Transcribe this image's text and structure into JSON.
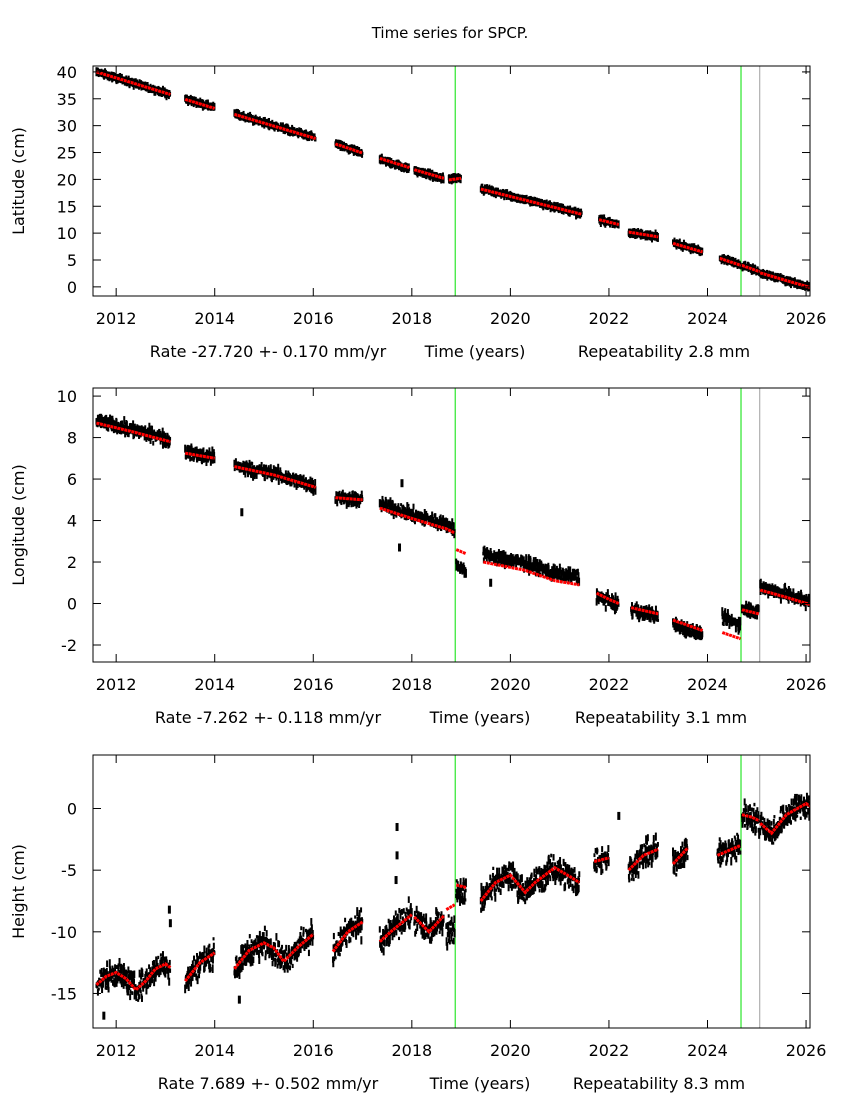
{
  "title": "Time series for SPCP.",
  "colors": {
    "observations": "#000000",
    "model": "#ff0000",
    "offset_line": "#00e000",
    "other_line": "#a0a0a0"
  },
  "chart_data": [
    {
      "type": "scatter",
      "ylabel": "Latitude (cm)",
      "xlabel": "Time (years)",
      "rate_label": "Rate -27.720 +- 0.170 mm/yr",
      "repeat_label": "Repeatability 2.8 mm",
      "xlim": [
        2011.53,
        2026.08
      ],
      "ylim": [
        -1.7,
        41.1
      ],
      "xticks": [
        2012,
        2014,
        2016,
        2018,
        2020,
        2022,
        2024,
        2026
      ],
      "yticks": [
        0,
        5,
        10,
        15,
        20,
        25,
        30,
        35,
        40
      ],
      "vlines": [
        {
          "x": 2018.88,
          "kind": "offset"
        },
        {
          "x": 2024.68,
          "kind": "offset"
        },
        {
          "x": 2025.06,
          "kind": "other"
        }
      ],
      "scatter_cm": 0.35,
      "segments": [
        {
          "model": [
            [
              2011.6,
              40.0
            ],
            [
              2013.1,
              35.8
            ]
          ],
          "obs_offset": 0.0
        },
        {
          "model": [
            [
              2013.4,
              34.9
            ],
            [
              2014.0,
              33.2
            ]
          ],
          "obs_offset": 0.1
        },
        {
          "model": [
            [
              2014.4,
              32.1
            ],
            [
              2016.05,
              27.6
            ]
          ],
          "obs_offset": 0.1
        },
        {
          "model": [
            [
              2016.45,
              26.6
            ],
            [
              2017.0,
              24.9
            ]
          ],
          "obs_offset": 0.0
        },
        {
          "model": [
            [
              2017.35,
              23.9
            ],
            [
              2017.95,
              22.2
            ]
          ],
          "obs_offset": -0.2
        },
        {
          "model": [
            [
              2018.05,
              21.8
            ],
            [
              2018.65,
              20.2
            ]
          ],
          "obs_offset": -0.1
        },
        {
          "model": [
            [
              2018.75,
              19.9
            ],
            [
              2019.0,
              20.2
            ]
          ],
          "obs_offset": 0.2
        },
        {
          "model": [
            [
              2019.4,
              18.2
            ],
            [
              2021.45,
              13.5
            ]
          ],
          "obs_offset": 0.1
        },
        {
          "model": [
            [
              2021.8,
              12.5
            ],
            [
              2022.2,
              11.6
            ]
          ],
          "obs_offset": 0.0
        },
        {
          "model": [
            [
              2022.4,
              10.2
            ],
            [
              2023.0,
              9.3
            ]
          ],
          "obs_offset": 0.0
        },
        {
          "model": [
            [
              2023.3,
              8.1
            ],
            [
              2023.9,
              6.5
            ]
          ],
          "obs_offset": 0.1
        },
        {
          "model": [
            [
              2024.25,
              5.3
            ],
            [
              2024.68,
              4.0
            ]
          ],
          "obs_offset": 0.1
        },
        {
          "model": [
            [
              2024.7,
              4.0
            ],
            [
              2025.06,
              2.8
            ]
          ],
          "obs_offset": 0.0
        },
        {
          "model": [
            [
              2025.07,
              2.6
            ],
            [
              2026.15,
              -0.3
            ]
          ],
          "obs_offset": 0.0
        }
      ],
      "outliers": []
    },
    {
      "type": "scatter",
      "ylabel": "Longitude (cm)",
      "xlabel": "Time (years)",
      "rate_label": "Rate -7.262 +- 0.118 mm/yr",
      "repeat_label": "Repeatability 3.1 mm",
      "xlim": [
        2011.53,
        2026.08
      ],
      "ylim": [
        -2.82,
        10.39
      ],
      "xticks": [
        2012,
        2014,
        2016,
        2018,
        2020,
        2022,
        2024,
        2026
      ],
      "yticks": [
        -2,
        0,
        2,
        4,
        6,
        8,
        10
      ],
      "vlines": [
        {
          "x": 2018.88,
          "kind": "offset"
        },
        {
          "x": 2024.68,
          "kind": "offset"
        },
        {
          "x": 2025.06,
          "kind": "other"
        }
      ],
      "scatter_cm": 0.25,
      "segments": [
        {
          "model": [
            [
              2011.6,
              8.7
            ],
            [
              2012.3,
              8.3
            ],
            [
              2013.1,
              7.8
            ]
          ],
          "obs_offset": 0.1
        },
        {
          "model": [
            [
              2013.4,
              7.25
            ],
            [
              2014.0,
              7.0
            ]
          ],
          "obs_offset": 0.05
        },
        {
          "model": [
            [
              2014.4,
              6.6
            ],
            [
              2015.2,
              6.2
            ],
            [
              2016.05,
              5.6
            ]
          ],
          "obs_offset": 0.05
        },
        {
          "model": [
            [
              2016.45,
              5.1
            ],
            [
              2017.0,
              5.0
            ]
          ],
          "obs_offset": 0.0
        },
        {
          "model": [
            [
              2017.35,
              4.6
            ],
            [
              2018.0,
              4.1
            ],
            [
              2018.7,
              3.6
            ],
            [
              2018.87,
              3.4
            ]
          ],
          "obs_offset": 0.2
        },
        {
          "model": [
            [
              2018.9,
              2.6
            ],
            [
              2019.1,
              2.4
            ]
          ],
          "obs_offset": -0.8
        },
        {
          "model": [
            [
              2019.45,
              2.0
            ],
            [
              2020.3,
              1.6
            ],
            [
              2020.9,
              1.1
            ],
            [
              2021.4,
              0.9
            ]
          ],
          "obs_offset": 0.35
        },
        {
          "model": [
            [
              2021.75,
              0.5
            ],
            [
              2022.0,
              0.2
            ],
            [
              2022.2,
              0.0
            ]
          ],
          "obs_offset": -0.1
        },
        {
          "model": [
            [
              2022.45,
              -0.2
            ],
            [
              2023.0,
              -0.5
            ]
          ],
          "obs_offset": -0.1
        },
        {
          "model": [
            [
              2023.3,
              -0.8
            ],
            [
              2023.9,
              -1.3
            ]
          ],
          "obs_offset": -0.2
        },
        {
          "model": [
            [
              2024.3,
              -1.4
            ],
            [
              2024.67,
              -1.7
            ]
          ],
          "obs_offset": 0.7
        },
        {
          "model": [
            [
              2024.7,
              -0.3
            ],
            [
              2025.04,
              -0.5
            ]
          ],
          "obs_offset": 0.1
        },
        {
          "model": [
            [
              2025.07,
              0.65
            ],
            [
              2025.6,
              0.3
            ],
            [
              2026.15,
              -0.1
            ]
          ],
          "obs_offset": 0.15
        }
      ],
      "outliers": [
        [
          2014.55,
          4.4
        ],
        [
          2017.75,
          2.7
        ],
        [
          2017.8,
          5.8
        ],
        [
          2019.6,
          1.0
        ]
      ]
    },
    {
      "type": "scatter",
      "ylabel": "Height (cm)",
      "xlabel": "Time (years)",
      "rate_label": "Rate 7.689 +- 0.502 mm/yr",
      "repeat_label": "Repeatability 8.3 mm",
      "xlim": [
        2011.53,
        2026.08
      ],
      "ylim": [
        -17.8,
        4.34
      ],
      "xticks": [
        2012,
        2014,
        2016,
        2018,
        2020,
        2022,
        2024,
        2026
      ],
      "yticks": [
        -15,
        -10,
        -5,
        0
      ],
      "vlines": [
        {
          "x": 2018.88,
          "kind": "offset"
        },
        {
          "x": 2024.68,
          "kind": "offset"
        },
        {
          "x": 2025.06,
          "kind": "other"
        }
      ],
      "scatter_cm": 0.9,
      "segments": [
        {
          "model": [
            [
              2011.6,
              -14.3
            ],
            [
              2011.8,
              -13.6
            ],
            [
              2012.0,
              -13.3
            ],
            [
              2012.2,
              -13.8
            ],
            [
              2012.4,
              -14.7
            ],
            [
              2012.6,
              -14.0
            ],
            [
              2012.8,
              -13.0
            ],
            [
              2013.0,
              -12.6
            ],
            [
              2013.1,
              -12.9
            ]
          ],
          "obs_offset": 0.0
        },
        {
          "model": [
            [
              2013.4,
              -14.0
            ],
            [
              2013.7,
              -12.5
            ],
            [
              2014.0,
              -11.7
            ]
          ],
          "obs_offset": 0.0
        },
        {
          "model": [
            [
              2014.4,
              -13.0
            ],
            [
              2014.7,
              -11.5
            ],
            [
              2015.0,
              -10.9
            ],
            [
              2015.2,
              -11.3
            ],
            [
              2015.4,
              -12.4
            ],
            [
              2015.7,
              -11.2
            ],
            [
              2016.0,
              -10.2
            ]
          ],
          "obs_offset": 0.0
        },
        {
          "model": [
            [
              2016.4,
              -11.6
            ],
            [
              2016.7,
              -10.0
            ],
            [
              2017.0,
              -9.2
            ]
          ],
          "obs_offset": 0.0
        },
        {
          "model": [
            [
              2017.35,
              -10.8
            ],
            [
              2017.6,
              -9.9
            ],
            [
              2018.0,
              -8.6
            ]
          ],
          "obs_offset": 0.0
        },
        {
          "model": [
            [
              2018.05,
              -8.8
            ],
            [
              2018.35,
              -10.0
            ],
            [
              2018.65,
              -8.7
            ]
          ],
          "obs_offset": 0.0
        },
        {
          "model": [
            [
              2018.7,
              -8.2
            ],
            [
              2018.87,
              -7.8
            ]
          ],
          "obs_offset": -1.9
        },
        {
          "model": [
            [
              2018.9,
              -6.2
            ],
            [
              2019.1,
              -6.4
            ]
          ],
          "obs_offset": -0.3
        },
        {
          "model": [
            [
              2019.4,
              -7.5
            ],
            [
              2019.7,
              -6.0
            ],
            [
              2020.0,
              -5.4
            ],
            [
              2020.3,
              -6.8
            ],
            [
              2020.5,
              -6.0
            ],
            [
              2020.9,
              -4.8
            ],
            [
              2021.2,
              -5.5
            ],
            [
              2021.4,
              -6.0
            ]
          ],
          "obs_offset": 0.0
        },
        {
          "model": [
            [
              2021.7,
              -4.3
            ],
            [
              2022.0,
              -4.0
            ]
          ],
          "obs_offset": 0.0
        },
        {
          "model": [
            [
              2022.4,
              -5.0
            ],
            [
              2022.7,
              -3.8
            ],
            [
              2023.0,
              -3.3
            ]
          ],
          "obs_offset": 0.0
        },
        {
          "model": [
            [
              2023.3,
              -4.5
            ],
            [
              2023.6,
              -3.2
            ]
          ],
          "obs_offset": 0.0
        },
        {
          "model": [
            [
              2024.2,
              -3.8
            ],
            [
              2024.67,
              -3.0
            ]
          ],
          "obs_offset": 0.0
        },
        {
          "model": [
            [
              2024.7,
              -0.5
            ],
            [
              2024.9,
              -0.7
            ],
            [
              2025.05,
              -1.0
            ]
          ],
          "obs_offset": 0.0
        },
        {
          "model": [
            [
              2025.07,
              -1.2
            ],
            [
              2025.3,
              -2.0
            ],
            [
              2025.6,
              -0.5
            ],
            [
              2026.0,
              0.4
            ],
            [
              2026.15,
              0.0
            ]
          ],
          "obs_offset": 0.0
        }
      ],
      "outliers": [
        [
          2017.7,
          -1.5
        ],
        [
          2017.7,
          -3.8
        ],
        [
          2017.68,
          -5.8
        ],
        [
          2013.08,
          -8.2
        ],
        [
          2013.1,
          -9.3
        ],
        [
          2022.2,
          -0.6
        ],
        [
          2011.75,
          -16.8
        ],
        [
          2014.5,
          -15.5
        ]
      ]
    }
  ]
}
